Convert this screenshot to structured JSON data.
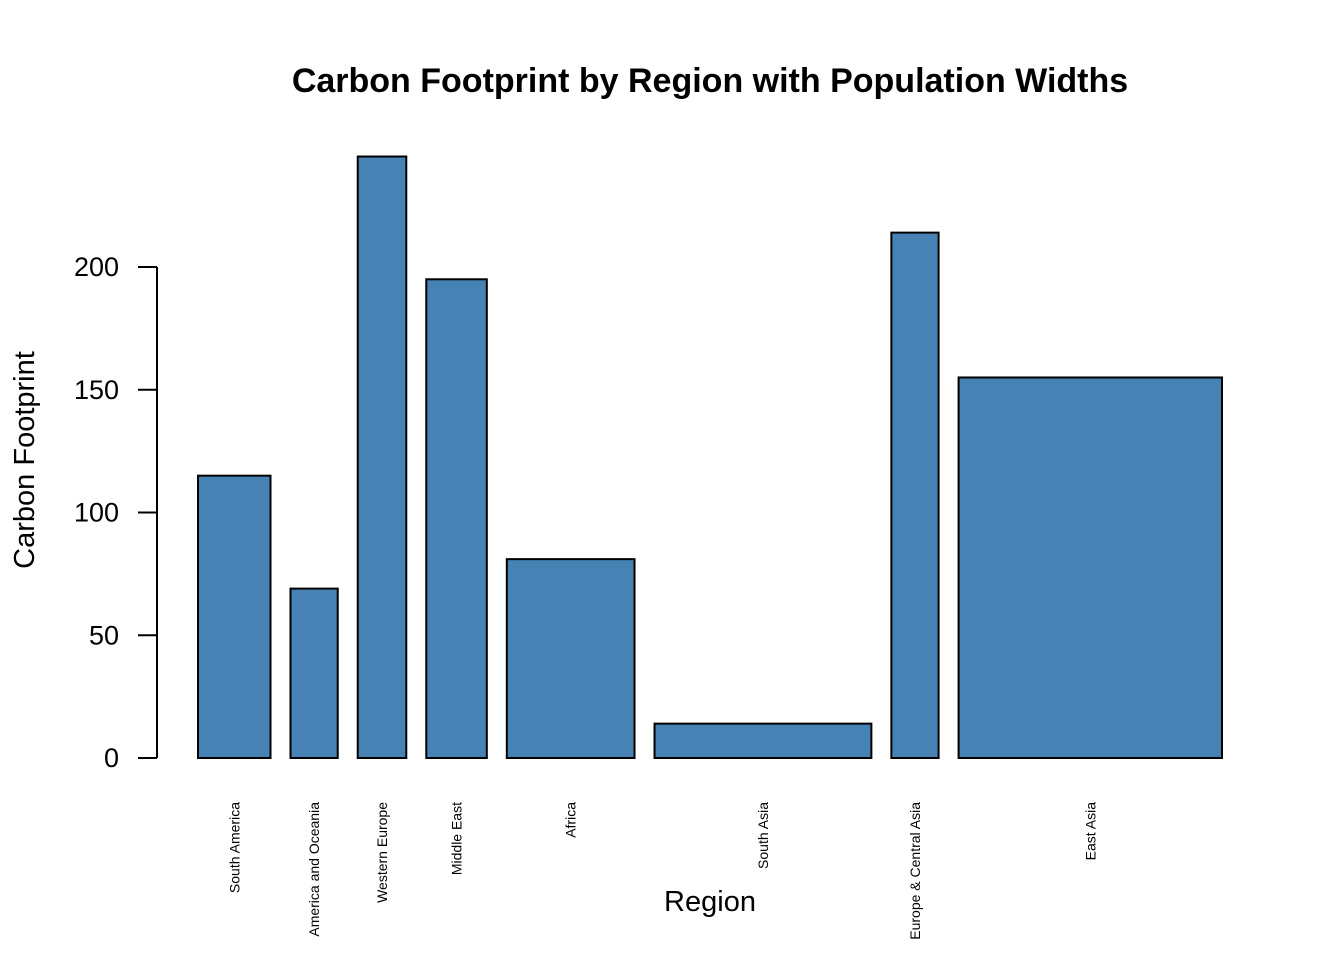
{
  "chart_data": {
    "type": "bar",
    "title": "Carbon Footprint by Region with Population Widths",
    "xlabel": "Region",
    "ylabel": "Carbon Footprint",
    "categories": [
      "South America",
      "America and Oceania",
      "Western Europe",
      "Middle East",
      "Africa",
      "South Asia",
      "Europe & Central Asia",
      "East Asia"
    ],
    "values": [
      115,
      69,
      245,
      195,
      81,
      14,
      214,
      155
    ],
    "relative_widths": [
      1.09,
      0.71,
      0.73,
      0.91,
      1.92,
      3.26,
      0.71,
      3.96
    ],
    "yticks": [
      0,
      50,
      100,
      150,
      200
    ],
    "ylim": [
      0,
      250
    ],
    "bar_color": "#4682B4",
    "grid": false,
    "legend": "none"
  }
}
